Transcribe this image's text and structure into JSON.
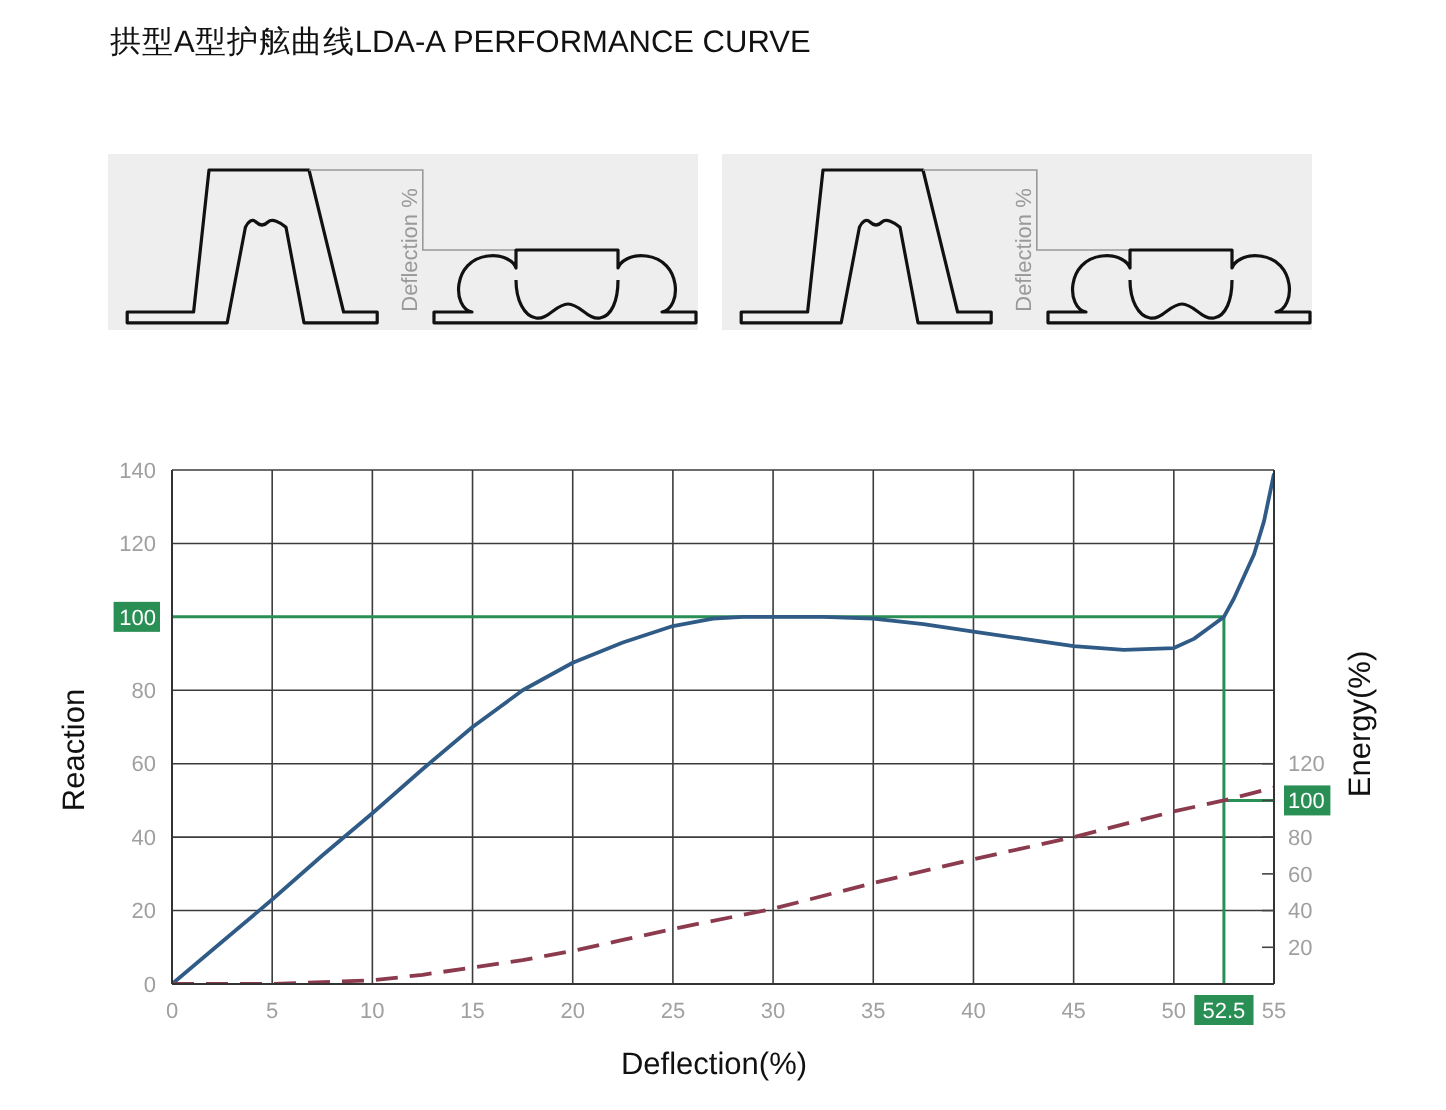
{
  "chart_data": {
    "type": "line",
    "title": "拱型A型护舷曲线LDA-A PERFORMANCE CURVE",
    "xlabel": "Deflection(%)",
    "ylabel": "Reaction",
    "y2label": "Energy(%)",
    "annotations": [
      "Deflection %",
      "Deflection %"
    ],
    "xlim": [
      0,
      55
    ],
    "xticks": [
      0,
      5,
      10,
      15,
      20,
      25,
      30,
      35,
      40,
      45,
      50,
      52.5,
      55
    ],
    "ylim": [
      0,
      140
    ],
    "yticks": [
      0,
      20,
      40,
      60,
      80,
      100,
      120,
      140
    ],
    "y2lim": [
      0,
      280
    ],
    "y2ticks": [
      20,
      40,
      60,
      80,
      100,
      120
    ],
    "grid": true,
    "marker": "none",
    "series": [
      {
        "color": "#2a8f55",
        "line_style": "solid",
        "x": [
          0,
          52.5,
          52.5
        ],
        "values": [
          100,
          100,
          0
        ]
      },
      {
        "color": "#2a8f55",
        "line_style": "solid",
        "axis": "y2",
        "x": [
          52.5,
          55
        ],
        "values": [
          100,
          100
        ]
      },
      {
        "color": "#2f5b86",
        "line_style": "solid",
        "x": [
          0,
          2.5,
          5,
          7.5,
          10,
          12.5,
          15,
          17.5,
          20,
          22.5,
          25,
          27,
          28.5,
          30,
          32.5,
          35,
          37.5,
          40,
          42.5,
          45,
          47.5,
          50,
          51,
          52,
          52.5,
          53,
          53.5,
          54,
          54.5,
          55
        ],
        "values": [
          0,
          11.5,
          23,
          35,
          46.5,
          58.5,
          70,
          80,
          87.5,
          93,
          97.5,
          99.5,
          100,
          100,
          100,
          99.5,
          98,
          96,
          94,
          92,
          91,
          91.5,
          94,
          98,
          100,
          105,
          111,
          117,
          126,
          139
        ]
      },
      {
        "color": "#8c3b4e",
        "line_style": "dashed",
        "axis": "y2",
        "x": [
          0,
          5,
          7.5,
          10,
          12.5,
          15,
          17.5,
          20,
          22.5,
          25,
          30,
          35,
          40,
          45,
          50,
          52.5,
          55
        ],
        "values": [
          0,
          0,
          1,
          2,
          5,
          9,
          13,
          18,
          24,
          30,
          41,
          55,
          68,
          80,
          94,
          100,
          107
        ]
      }
    ]
  }
}
